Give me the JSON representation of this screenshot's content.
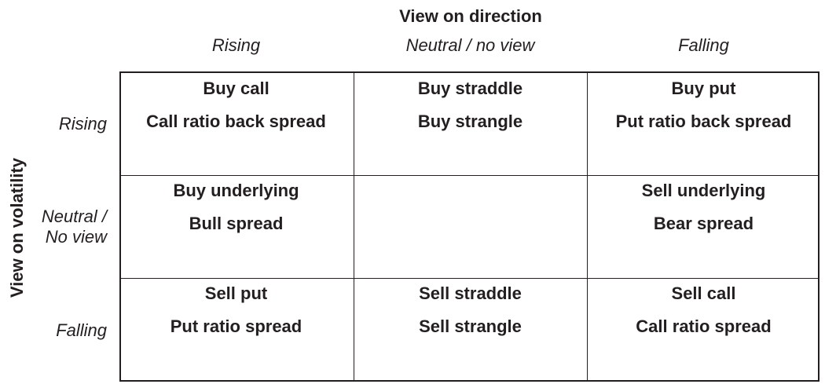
{
  "direction_axis": {
    "title": "View on direction",
    "columns": [
      "Rising",
      "Neutral / no view",
      "Falling"
    ]
  },
  "volatility_axis": {
    "title": "View on volatility",
    "rows": [
      [
        "Rising"
      ],
      [
        "Neutral /",
        "No view"
      ],
      [
        "Falling"
      ]
    ]
  },
  "cells": [
    [
      [
        "Buy call",
        "Call ratio back spread"
      ],
      [
        "Buy straddle",
        "Buy strangle"
      ],
      [
        "Buy put",
        "Put ratio back spread"
      ]
    ],
    [
      [
        "Buy underlying",
        "Bull spread"
      ],
      [],
      [
        "Sell underlying",
        "Bear spread"
      ]
    ],
    [
      [
        "Sell put",
        "Put ratio spread"
      ],
      [
        "Sell straddle",
        "Sell strangle"
      ],
      [
        "Sell call",
        "Call ratio spread"
      ]
    ]
  ]
}
